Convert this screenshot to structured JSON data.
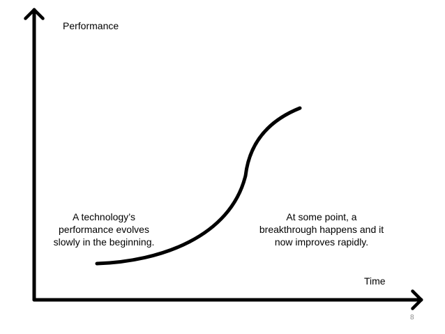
{
  "axes": {
    "y_label": "Performance",
    "x_label": "Time"
  },
  "annotations": {
    "left": [
      "A technology’s",
      "performance evolves",
      "slowly in the beginning."
    ],
    "right": [
      "At some point, a",
      "breakthrough happens and it",
      "now improves rapidly."
    ]
  },
  "page_number": "8",
  "colors": {
    "stroke": "#000000",
    "page_number": "#8a8a8a"
  }
}
